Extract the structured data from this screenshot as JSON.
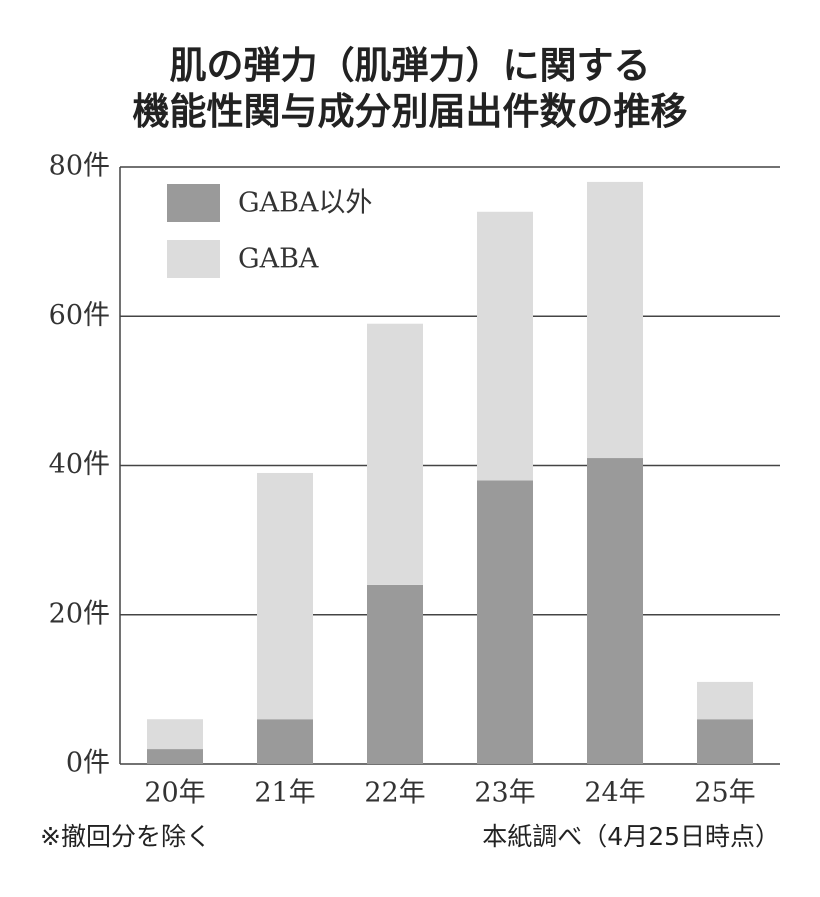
{
  "chart_data": {
    "type": "stacked_bar",
    "title_lines": [
      "肌の弾力（肌弾力）に関する",
      "機能性関与成分別届出件数の推移"
    ],
    "categories": [
      "20年",
      "21年",
      "22年",
      "23年",
      "24年",
      "25年"
    ],
    "series": [
      {
        "name": "GABA以外",
        "color": "#9a9a9a",
        "values": [
          2,
          6,
          24,
          38,
          41,
          6
        ]
      },
      {
        "name": "GABA",
        "color": "#dcdcdc",
        "values": [
          4,
          33,
          35,
          36,
          37,
          5
        ]
      }
    ],
    "ylim": [
      0,
      80
    ],
    "yticks": [
      {
        "value": 0,
        "label": "0件"
      },
      {
        "value": 20,
        "label": "20件"
      },
      {
        "value": 40,
        "label": "40件"
      },
      {
        "value": 60,
        "label": "60件"
      },
      {
        "value": 80,
        "label": "80件"
      }
    ],
    "grid": true,
    "notes": [
      "※撤回分を除く",
      "本紙調べ（4月25日時点）"
    ]
  }
}
